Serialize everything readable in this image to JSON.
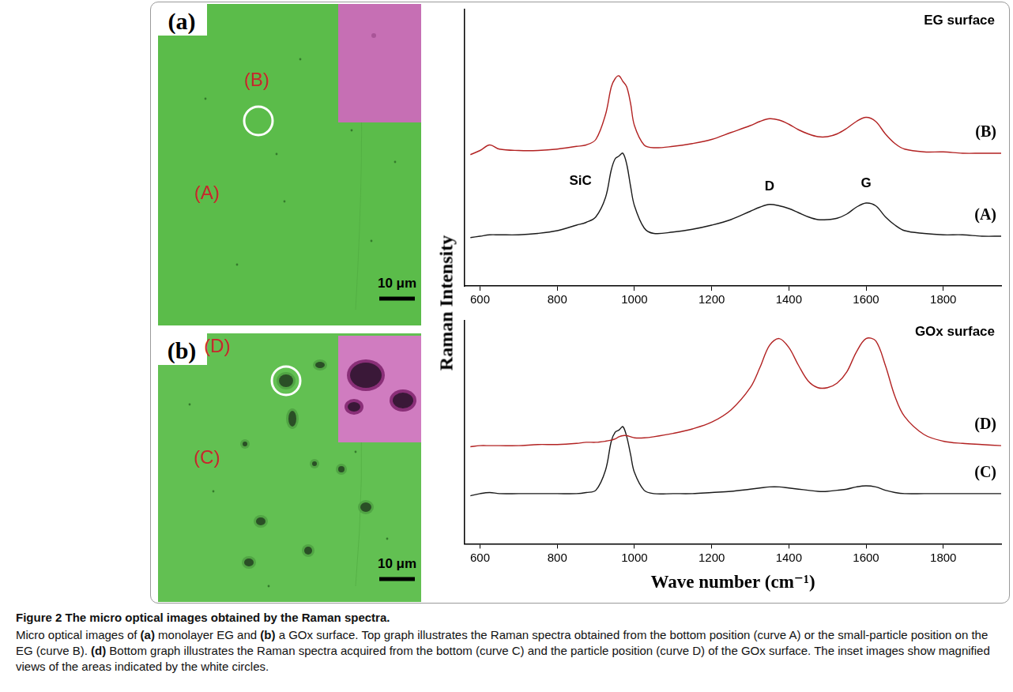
{
  "figure": {
    "label": "Figure 2",
    "title": "The micro optical images obtained by the Raman spectra.",
    "caption": [
      {
        "text": "Micro optical images of "
      },
      {
        "text": "(a)",
        "bold": true
      },
      {
        "text": " monolayer EG and "
      },
      {
        "text": "(b)",
        "bold": true
      },
      {
        "text": " a GOx surface. Top graph illustrates the Raman spectra obtained from the bottom position (curve A) or the small-particle position on the EG (curve B). "
      },
      {
        "text": "(d)",
        "bold": true
      },
      {
        "text": " Bottom graph illustrates the Raman spectra acquired from the bottom (curve C) and the particle position (curve D) of the GOx surface. The inset images show magnified views of the areas indicated by the white circles."
      }
    ]
  },
  "images": [
    {
      "panel": "(a)",
      "regions": [
        "(A)",
        "(B)"
      ],
      "scale_bar": "10 μm"
    },
    {
      "panel": "(b)",
      "regions": [
        "(C)",
        "(D)"
      ],
      "scale_bar": "10 μm"
    }
  ],
  "shared_ylabel": "Raman Intensity",
  "chart_data": [
    {
      "type": "line",
      "title": "EG surface",
      "tick_labels": "x",
      "grid": false,
      "x": [
        575,
        600,
        625,
        650,
        700,
        750,
        800,
        850,
        875,
        900,
        925,
        940,
        950,
        960,
        970,
        980,
        990,
        1000,
        1025,
        1050,
        1100,
        1150,
        1200,
        1250,
        1300,
        1325,
        1350,
        1375,
        1400,
        1425,
        1450,
        1475,
        1500,
        1525,
        1550,
        1575,
        1600,
        1625,
        1650,
        1675,
        1700,
        1750,
        1800,
        1850,
        1900,
        1950
      ],
      "xlim": [
        560,
        1950
      ],
      "xticks": [
        600,
        800,
        1000,
        1200,
        1400,
        1600,
        1800
      ],
      "ylim": [
        0,
        100
      ],
      "series": [
        {
          "name": "(B)",
          "color": "#b22222",
          "values": [
            47.5,
            49,
            51,
            49.5,
            49,
            49,
            49.5,
            50.5,
            51,
            53,
            62,
            72,
            75,
            76,
            74,
            72,
            66,
            58,
            51,
            50,
            50.5,
            51.5,
            53,
            55.5,
            58,
            59.5,
            60.5,
            60,
            58.5,
            56.5,
            55,
            54,
            54,
            55,
            57,
            59.5,
            61,
            59.5,
            55,
            51.5,
            49.5,
            48.5,
            48.5,
            48,
            48,
            48
          ]
        },
        {
          "name": "(A)",
          "color": "#1a1a1a",
          "values": [
            17.5,
            18,
            18.5,
            18.5,
            18.5,
            19,
            20,
            22,
            23,
            25,
            32,
            42,
            46,
            47,
            48,
            44,
            36,
            29,
            21,
            19,
            19.5,
            20.5,
            22,
            24,
            27,
            28.5,
            29.5,
            29,
            28,
            26.5,
            25,
            24,
            24,
            24.5,
            26,
            28.5,
            30,
            29,
            25,
            22,
            20,
            19,
            18.5,
            18.5,
            18,
            18
          ]
        }
      ],
      "annotations": [
        {
          "text": "SiC",
          "x": 860,
          "y": 38
        },
        {
          "text": "D",
          "x": 1350,
          "y": 36
        },
        {
          "text": "G",
          "x": 1600,
          "y": 37
        }
      ]
    },
    {
      "type": "line",
      "title": "GOx surface",
      "tick_labels": "x",
      "grid": false,
      "xlabel": "Wave number (cm⁻¹)",
      "x": [
        575,
        600,
        625,
        650,
        700,
        750,
        800,
        850,
        875,
        900,
        925,
        940,
        950,
        960,
        970,
        980,
        990,
        1000,
        1025,
        1050,
        1100,
        1150,
        1200,
        1250,
        1300,
        1325,
        1350,
        1375,
        1400,
        1425,
        1450,
        1475,
        1500,
        1525,
        1550,
        1575,
        1600,
        1625,
        1650,
        1675,
        1700,
        1750,
        1800,
        1850,
        1900,
        1950
      ],
      "xlim": [
        560,
        1950
      ],
      "xticks": [
        600,
        800,
        1000,
        1200,
        1400,
        1600,
        1800
      ],
      "ylim": [
        0,
        100
      ],
      "series": [
        {
          "name": "(D)",
          "color": "#b22222",
          "values": [
            43.5,
            44,
            44,
            44,
            44,
            44.5,
            44.5,
            45,
            45.5,
            45.5,
            46,
            46.5,
            47,
            48,
            48.5,
            48.5,
            48,
            47.5,
            47.5,
            48,
            49.5,
            51.5,
            54.5,
            60,
            70,
            79,
            89,
            92,
            88,
            80,
            73,
            70,
            70,
            72,
            77,
            86,
            92,
            91,
            80,
            66,
            57,
            49,
            46,
            45,
            44.5,
            44
          ]
        },
        {
          "name": "(C)",
          "color": "#1a1a1a",
          "values": [
            21.5,
            22.5,
            23,
            22.5,
            22.5,
            22.5,
            22.5,
            22.5,
            23,
            24,
            33,
            46,
            50,
            51,
            52.5,
            48,
            40,
            32,
            24,
            22.5,
            22.5,
            22.5,
            23,
            23.5,
            24.5,
            25,
            25.5,
            25.5,
            25,
            24.5,
            24,
            23.5,
            23.5,
            24,
            24.5,
            25.5,
            26,
            25.5,
            24,
            23,
            22.5,
            22.5,
            22.5,
            22.5,
            22.5,
            22.5
          ]
        }
      ]
    }
  ]
}
